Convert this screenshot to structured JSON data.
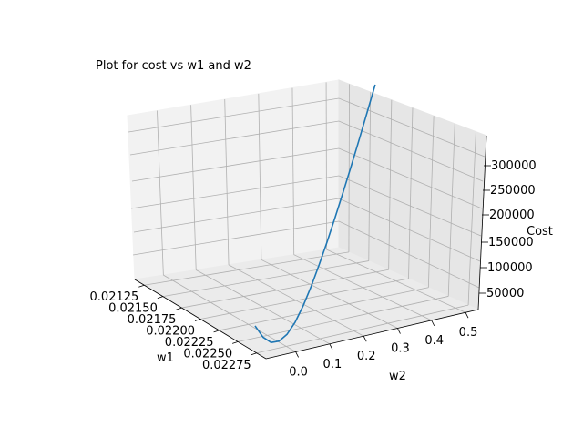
{
  "chart_data": {
    "type": "line3d",
    "title": "Plot for cost vs w1 and w2",
    "xlabel": "w1",
    "ylabel": "w2",
    "zlabel": "Cost",
    "x_ticks": [
      "0.02125",
      "0.02150",
      "0.02175",
      "0.02200",
      "0.02225",
      "0.02250",
      "0.02275"
    ],
    "y_ticks": [
      "0.0",
      "0.1",
      "0.2",
      "0.3",
      "0.4",
      "0.5"
    ],
    "z_ticks": [
      "50000",
      "100000",
      "150000",
      "200000",
      "250000",
      "300000"
    ],
    "series": [
      {
        "color": "#1f77b4",
        "points": [
          {
            "w2": -0.03,
            "cost": 25000
          },
          {
            "w2": 0.0,
            "cost": 9000
          },
          {
            "w2": 0.03,
            "cost": 1500
          },
          {
            "w2": 0.06,
            "cost": 3000
          },
          {
            "w2": 0.09,
            "cost": 12000
          },
          {
            "w2": 0.12,
            "cost": 28000
          },
          {
            "w2": 0.15,
            "cost": 50000
          },
          {
            "w2": 0.18,
            "cost": 76000
          },
          {
            "w2": 0.21,
            "cost": 105000
          },
          {
            "w2": 0.24,
            "cost": 136000
          },
          {
            "w2": 0.27,
            "cost": 169000
          },
          {
            "w2": 0.3,
            "cost": 203000
          },
          {
            "w2": 0.33,
            "cost": 238000
          },
          {
            "w2": 0.36,
            "cost": 274000
          },
          {
            "w2": 0.39,
            "cost": 311000
          },
          {
            "w2": 0.42,
            "cost": 348000
          }
        ]
      }
    ]
  }
}
